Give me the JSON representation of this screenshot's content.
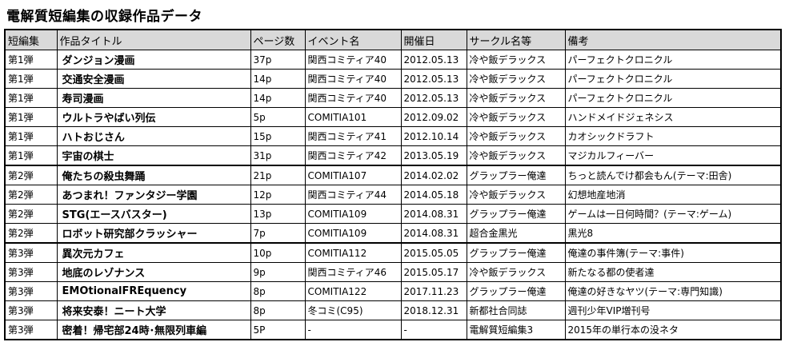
{
  "title": "電解質短編集の収録作品データ",
  "table": {
    "headers": [
      "短編集",
      "作品タイトル",
      "ページ数",
      "イベント名",
      "開催日",
      "サークル名等",
      "備考"
    ],
    "rows": [
      [
        "第1弾",
        "ダンジョン漫画",
        "37p",
        "関西コミティア40",
        "2012.05.13",
        "冷や飯デラックス",
        "パーフェクトクロニクル"
      ],
      [
        "第1弾",
        "交通安全漫画",
        "14p",
        "関西コミティア40",
        "2012.05.13",
        "冷や飯デラックス",
        "パーフェクトクロニクル"
      ],
      [
        "第1弾",
        "寿司漫画",
        "14p",
        "関西コミティア40",
        "2012.05.13",
        "冷や飯デラックス",
        "パーフェクトクロニクル"
      ],
      [
        "第1弾",
        "ウルトラやばい列伝",
        "5p",
        "COMITIA101",
        "2012.09.02",
        "冷や飯デラックス",
        "ハンドメイドジェネシス"
      ],
      [
        "第1弾",
        "ハトおじさん",
        "15p",
        "関西コミティア41",
        "2012.10.14",
        "冷や飯デラックス",
        "カオシックドラフト"
      ],
      [
        "第1弾",
        "宇宙の棋士",
        "31p",
        "関西コミティア42",
        "2013.05.19",
        "冷や飯デラックス",
        "マジカルフィーバー"
      ],
      [
        "第2弾",
        "俺たちの殺虫舞踊",
        "21p",
        "COMITIA107",
        "2014.02.02",
        "グラップラー俺達",
        "ちっと読んでけ都会もん(テーマ:田舎)"
      ],
      [
        "第2弾",
        "あつまれ！ファンタジー学園",
        "12p",
        "関西コミティア44",
        "2014.05.18",
        "冷や飯デラックス",
        "幻想地産地消"
      ],
      [
        "第2弾",
        "STG(エースバスター)",
        "13p",
        "COMITIA109",
        "2014.08.31",
        "グラップラー俺達",
        "ゲームは一日何時間？(テーマ:ゲーム)"
      ],
      [
        "第2弾",
        "ロボット研究部クラッシャー",
        "7p",
        "COMITIA109",
        "2014.08.31",
        "超合金黒光",
        "黒光8"
      ],
      [
        "第3弾",
        "異次元カフェ",
        "10p",
        "COMITIA112",
        "2015.05.05",
        "グラップラー俺達",
        "俺達の事件簿(テーマ:事件)"
      ],
      [
        "第3弾",
        "地底のレゾナンス",
        "9p",
        "関西コミティア46",
        "2015.05.17",
        "冷や飯デラックス",
        "新たなる都の使者達"
      ],
      [
        "第3弾",
        "EMOtionalFREquency",
        "8p",
        "COMITIA122",
        "2017.11.23",
        "グラップラー俺達",
        "俺達の好きなヤツ(テーマ:専門知識)"
      ],
      [
        "第3弾",
        "将来安泰！ニート大学",
        "8p",
        "冬コミ(C95)",
        "2018.12.31",
        "新都社合同誌",
        "週刊少年VIP増刊号"
      ],
      [
        "第3弾",
        "密着！帰宅部24時･無限列車編",
        "5P",
        "-",
        "-",
        "電解質短編集3",
        "2015年の単行本の没ネタ"
      ]
    ]
  }
}
